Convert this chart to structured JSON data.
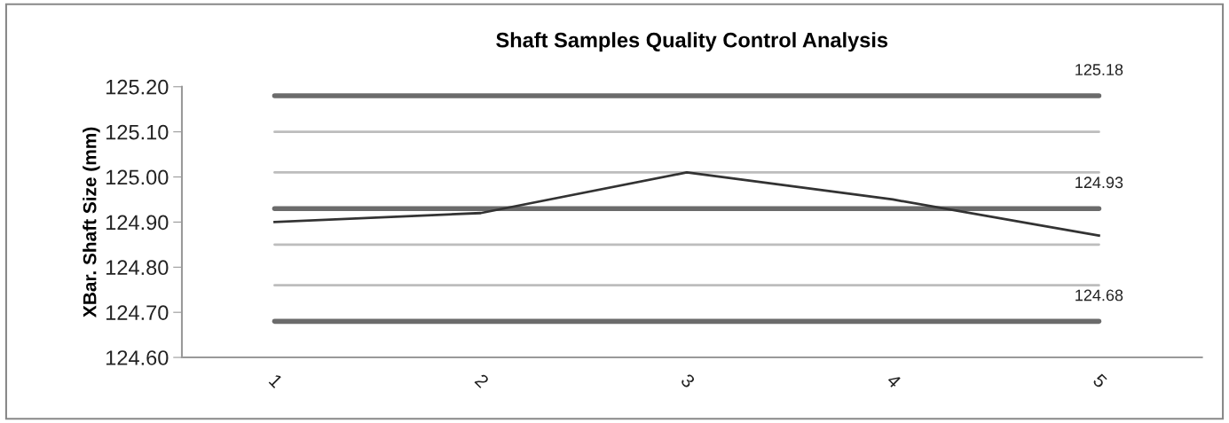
{
  "chart_data": {
    "type": "line",
    "title": "Shaft Samples Quality Control Analysis",
    "ylabel": "XBar. Shaft Size (mm)",
    "categories": [
      "1",
      "2",
      "3",
      "4",
      "5"
    ],
    "series": [
      {
        "color": "#333333",
        "values": [
          124.9,
          124.92,
          125.01,
          124.95,
          124.87
        ]
      }
    ],
    "ylim": [
      124.6,
      125.2
    ],
    "yticks": [
      {
        "value": 124.6,
        "label": "124.60"
      },
      {
        "value": 124.7,
        "label": "124.70"
      },
      {
        "value": 124.8,
        "label": "124.80"
      },
      {
        "value": 124.9,
        "label": "124.90"
      },
      {
        "value": 125.0,
        "label": "125.00"
      },
      {
        "value": 125.1,
        "label": "125.10"
      },
      {
        "value": 125.2,
        "label": "125.20"
      }
    ],
    "ref_lines": [
      {
        "axis": "y",
        "value": 125.18,
        "label": "125.18",
        "color": "#6b6b6b"
      },
      {
        "axis": "y",
        "value": 125.1,
        "color": "#bdbdbd"
      },
      {
        "axis": "y",
        "value": 125.01,
        "color": "#bdbdbd"
      },
      {
        "axis": "y",
        "value": 124.93,
        "label": "124.93",
        "color": "#6b6b6b"
      },
      {
        "axis": "y",
        "value": 124.85,
        "color": "#bdbdbd"
      },
      {
        "axis": "y",
        "value": 124.76,
        "color": "#bdbdbd"
      },
      {
        "axis": "y",
        "value": 124.68,
        "label": "124.68",
        "color": "#6b6b6b"
      }
    ],
    "grid": false,
    "marker": "none",
    "line_style": "solid"
  }
}
